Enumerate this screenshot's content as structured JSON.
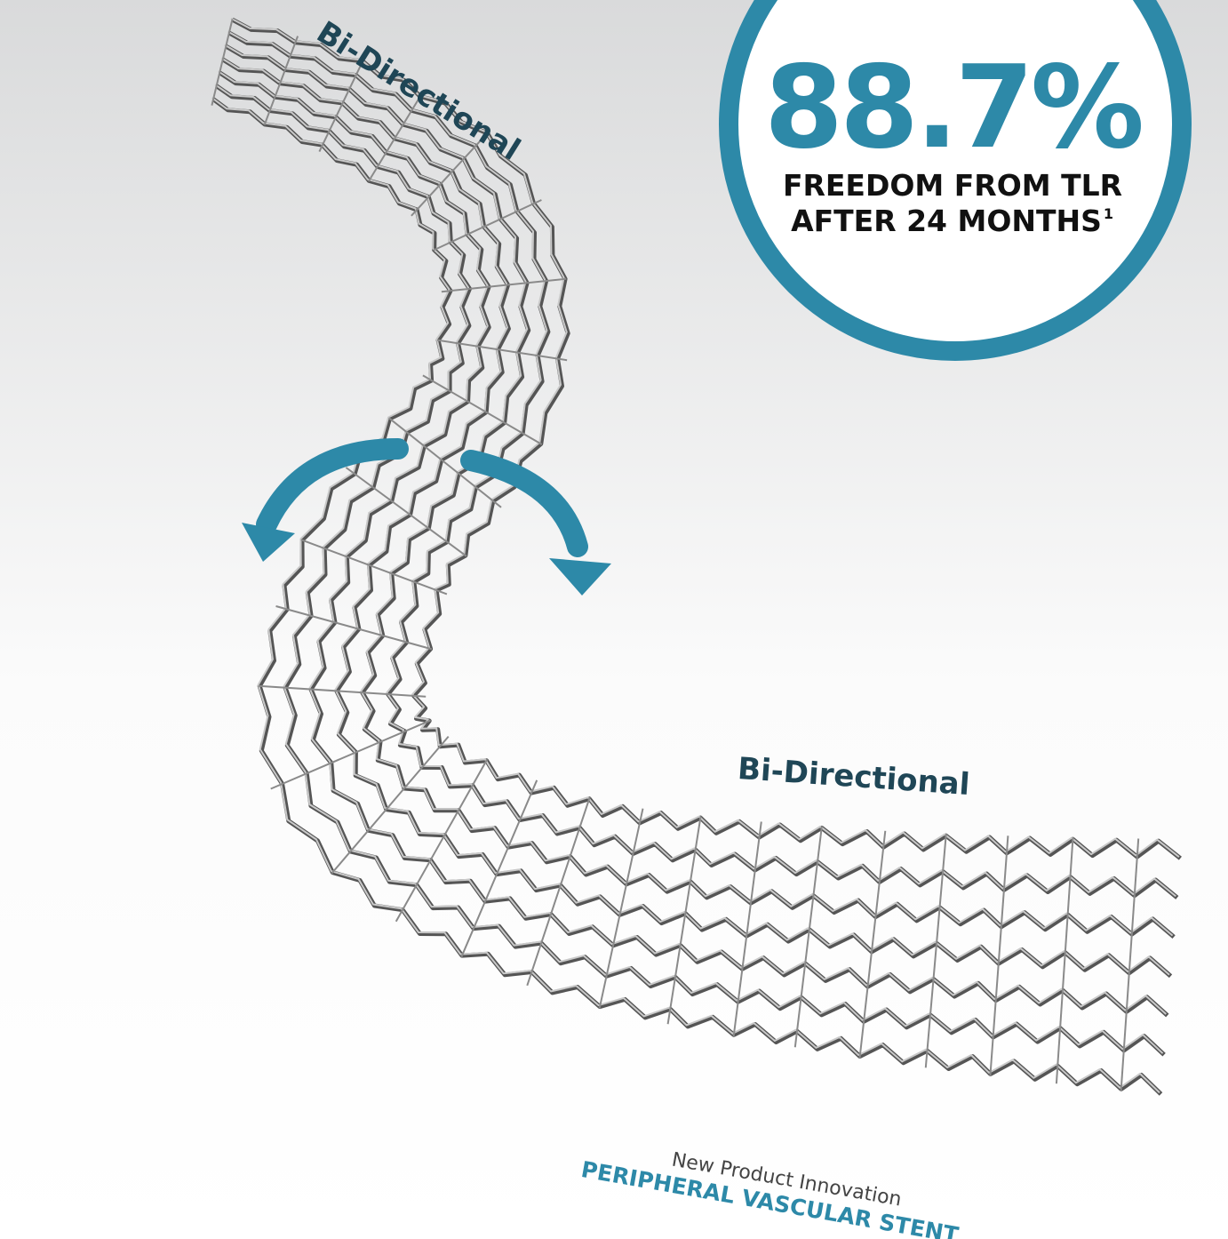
{
  "labels": {
    "top": "Bi-Directional",
    "bottom": "Bi-Directional"
  },
  "stat": {
    "value": "88.7%",
    "line1": "FREEDOM FROM TLR",
    "line2": "AFTER 24 MONTHS",
    "footnote": "1"
  },
  "tagline": {
    "kicker": "New Product Innovation",
    "product": "PERIPHERAL VASCULAR STENT"
  }
}
